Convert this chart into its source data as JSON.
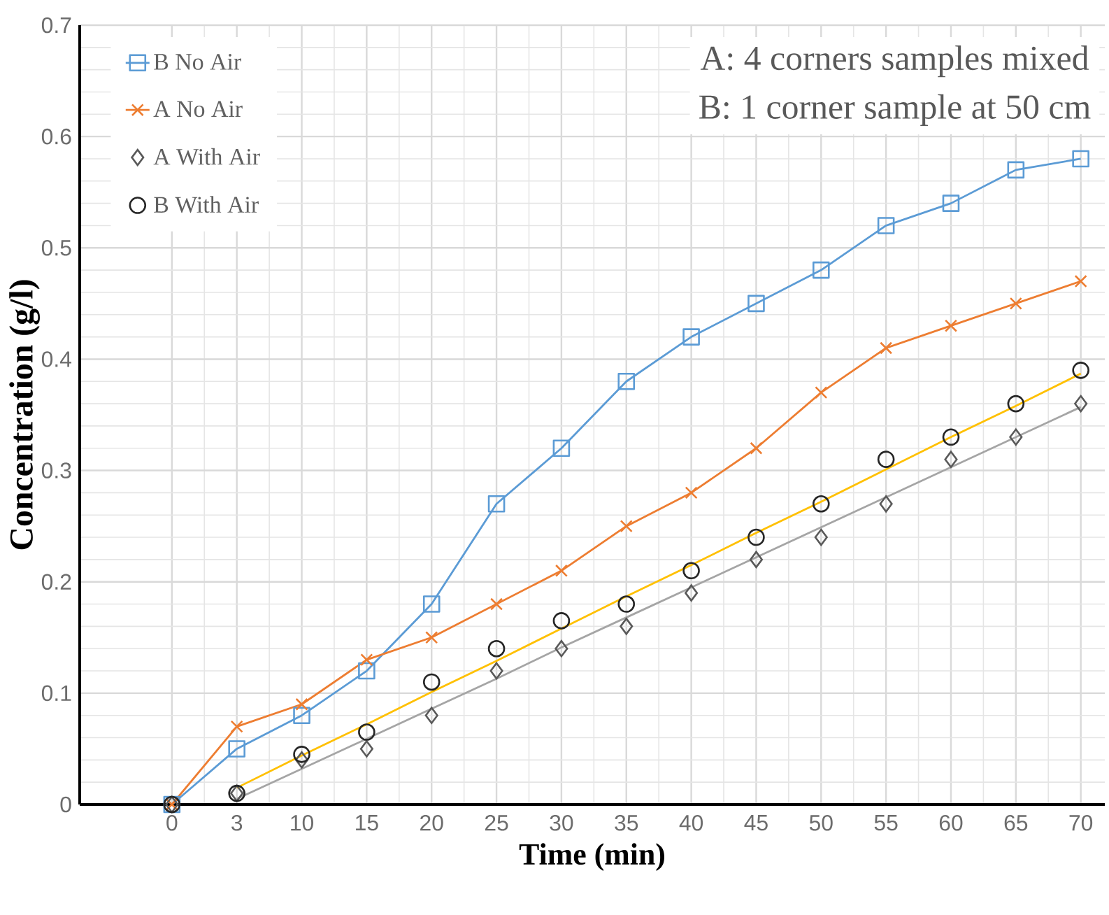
{
  "chart_data": {
    "type": "line",
    "xlabel": "Time (min)",
    "ylabel": "Concentration (g/l)",
    "categories": [
      "0",
      "3",
      "10",
      "15",
      "20",
      "25",
      "30",
      "35",
      "40",
      "45",
      "50",
      "55",
      "60",
      "65",
      "70"
    ],
    "series": [
      {
        "name": "B No Air",
        "type": "line",
        "color": "#5b9bd5",
        "marker": "square",
        "values": [
          0,
          0.05,
          0.08,
          0.12,
          0.18,
          0.27,
          0.32,
          0.38,
          0.42,
          0.45,
          0.48,
          0.52,
          0.54,
          0.57,
          0.58
        ]
      },
      {
        "name": "A No Air",
        "type": "line",
        "color": "#ed7d31",
        "marker": "cross",
        "values": [
          0,
          0.07,
          0.09,
          0.13,
          0.15,
          0.18,
          0.21,
          0.25,
          0.28,
          0.32,
          0.37,
          0.41,
          0.43,
          0.45,
          0.47
        ]
      },
      {
        "name": "A With Air",
        "type": "scatter",
        "color": "#595959",
        "marker": "diamond",
        "values": [
          0,
          0.01,
          0.04,
          0.05,
          0.08,
          0.12,
          0.14,
          0.16,
          0.19,
          0.22,
          0.24,
          0.27,
          0.31,
          0.33,
          0.36
        ]
      },
      {
        "name": "B With Air",
        "type": "scatter",
        "color": "#262626",
        "marker": "circle",
        "values": [
          0,
          0.01,
          0.045,
          0.065,
          0.11,
          0.14,
          0.165,
          0.18,
          0.21,
          0.24,
          0.27,
          0.31,
          0.33,
          0.36,
          0.39
        ]
      },
      {
        "type": "line",
        "color": "#ffc000",
        "marker": "none",
        "x": [
          "3",
          "10",
          "15",
          "20",
          "25",
          "30",
          "35",
          "40",
          "45",
          "50",
          "55",
          "60",
          "65",
          "70"
        ],
        "values": [
          0.015,
          0.044,
          0.072,
          0.101,
          0.129,
          0.158,
          0.187,
          0.215,
          0.244,
          0.272,
          0.301,
          0.33,
          0.358,
          0.387
        ]
      },
      {
        "type": "line",
        "color": "#a5a5a5",
        "marker": "none",
        "x": [
          "3",
          "10",
          "15",
          "20",
          "25",
          "30",
          "35",
          "40",
          "45",
          "50",
          "55",
          "60",
          "65",
          "70"
        ],
        "values": [
          0.005,
          0.032,
          0.059,
          0.086,
          0.113,
          0.141,
          0.168,
          0.195,
          0.222,
          0.249,
          0.276,
          0.303,
          0.33,
          0.357
        ]
      }
    ],
    "ylim": [
      0,
      0.7
    ],
    "yticks": [
      0,
      0.1,
      0.2,
      0.3,
      0.4,
      0.5,
      0.6,
      0.7
    ],
    "grid": true,
    "legend": "top left",
    "annotations": [
      "A: 4 corners samples mixed",
      "B: 1 corner sample at 50 cm"
    ]
  }
}
